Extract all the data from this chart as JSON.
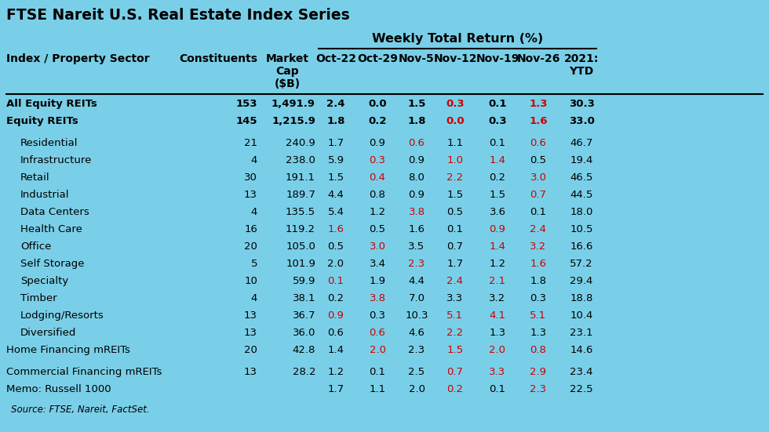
{
  "title": "FTSE Nareit U.S. Real Estate Index Series",
  "subtitle": "Weekly Total Return (%)",
  "bg_color": "#7acfe8",
  "rows": [
    {
      "sector": "All Equity REITs",
      "indent": false,
      "bold": true,
      "constituents": "153",
      "mktcap": "1,491.9",
      "vals": [
        "2.4",
        "0.0",
        "1.5",
        "0.3",
        "0.1",
        "1.3",
        "30.3"
      ],
      "red": [
        false,
        false,
        false,
        true,
        false,
        true,
        false
      ]
    },
    {
      "sector": "Equity REITs",
      "indent": false,
      "bold": true,
      "constituents": "145",
      "mktcap": "1,215.9",
      "vals": [
        "1.8",
        "0.2",
        "1.8",
        "0.0",
        "0.3",
        "1.6",
        "33.0"
      ],
      "red": [
        false,
        false,
        false,
        true,
        false,
        true,
        false
      ]
    },
    {
      "sector": "Residential",
      "indent": true,
      "bold": false,
      "constituents": "21",
      "mktcap": "240.9",
      "vals": [
        "1.7",
        "0.9",
        "0.6",
        "1.1",
        "0.1",
        "0.6",
        "46.7"
      ],
      "red": [
        false,
        false,
        true,
        false,
        false,
        true,
        false
      ]
    },
    {
      "sector": "Infrastructure",
      "indent": true,
      "bold": false,
      "constituents": "4",
      "mktcap": "238.0",
      "vals": [
        "5.9",
        "0.3",
        "0.9",
        "1.0",
        "1.4",
        "0.5",
        "19.4"
      ],
      "red": [
        false,
        true,
        false,
        true,
        true,
        false,
        false
      ]
    },
    {
      "sector": "Retail",
      "indent": true,
      "bold": false,
      "constituents": "30",
      "mktcap": "191.1",
      "vals": [
        "1.5",
        "0.4",
        "8.0",
        "2.2",
        "0.2",
        "3.0",
        "46.5"
      ],
      "red": [
        false,
        true,
        false,
        true,
        false,
        true,
        false
      ]
    },
    {
      "sector": "Industrial",
      "indent": true,
      "bold": false,
      "constituents": "13",
      "mktcap": "189.7",
      "vals": [
        "4.4",
        "0.8",
        "0.9",
        "1.5",
        "1.5",
        "0.7",
        "44.5"
      ],
      "red": [
        false,
        false,
        false,
        false,
        false,
        true,
        false
      ]
    },
    {
      "sector": "Data Centers",
      "indent": true,
      "bold": false,
      "constituents": "4",
      "mktcap": "135.5",
      "vals": [
        "5.4",
        "1.2",
        "3.8",
        "0.5",
        "3.6",
        "0.1",
        "18.0"
      ],
      "red": [
        false,
        false,
        true,
        false,
        false,
        false,
        false
      ]
    },
    {
      "sector": "Health Care",
      "indent": true,
      "bold": false,
      "constituents": "16",
      "mktcap": "119.2",
      "vals": [
        "1.6",
        "0.5",
        "1.6",
        "0.1",
        "0.9",
        "2.4",
        "10.5"
      ],
      "red": [
        true,
        false,
        false,
        false,
        true,
        true,
        false
      ]
    },
    {
      "sector": "Office",
      "indent": true,
      "bold": false,
      "constituents": "20",
      "mktcap": "105.0",
      "vals": [
        "0.5",
        "3.0",
        "3.5",
        "0.7",
        "1.4",
        "3.2",
        "16.6"
      ],
      "red": [
        false,
        true,
        false,
        false,
        true,
        true,
        false
      ]
    },
    {
      "sector": "Self Storage",
      "indent": true,
      "bold": false,
      "constituents": "5",
      "mktcap": "101.9",
      "vals": [
        "2.0",
        "3.4",
        "2.3",
        "1.7",
        "1.2",
        "1.6",
        "57.2"
      ],
      "red": [
        false,
        false,
        true,
        false,
        false,
        true,
        false
      ]
    },
    {
      "sector": "Specialty",
      "indent": true,
      "bold": false,
      "constituents": "10",
      "mktcap": "59.9",
      "vals": [
        "0.1",
        "1.9",
        "4.4",
        "2.4",
        "2.1",
        "1.8",
        "29.4"
      ],
      "red": [
        true,
        false,
        false,
        true,
        true,
        false,
        false
      ]
    },
    {
      "sector": "Timber",
      "indent": true,
      "bold": false,
      "constituents": "4",
      "mktcap": "38.1",
      "vals": [
        "0.2",
        "3.8",
        "7.0",
        "3.3",
        "3.2",
        "0.3",
        "18.8"
      ],
      "red": [
        false,
        true,
        false,
        false,
        false,
        false,
        false
      ]
    },
    {
      "sector": "Lodging/Resorts",
      "indent": true,
      "bold": false,
      "constituents": "13",
      "mktcap": "36.7",
      "vals": [
        "0.9",
        "0.3",
        "10.3",
        "5.1",
        "4.1",
        "5.1",
        "10.4"
      ],
      "red": [
        true,
        false,
        false,
        true,
        true,
        true,
        false
      ]
    },
    {
      "sector": "Diversified",
      "indent": true,
      "bold": false,
      "constituents": "13",
      "mktcap": "36.0",
      "vals": [
        "0.6",
        "0.6",
        "4.6",
        "2.2",
        "1.3",
        "1.3",
        "23.1"
      ],
      "red": [
        false,
        true,
        false,
        true,
        false,
        false,
        false
      ]
    },
    {
      "sector": "Home Financing mREITs",
      "indent": false,
      "bold": false,
      "constituents": "20",
      "mktcap": "42.8",
      "vals": [
        "1.4",
        "2.0",
        "2.3",
        "1.5",
        "2.0",
        "0.8",
        "14.6"
      ],
      "red": [
        false,
        true,
        false,
        true,
        true,
        true,
        false
      ]
    },
    {
      "sector": "Commercial Financing mREITs",
      "indent": false,
      "bold": false,
      "constituents": "13",
      "mktcap": "28.2",
      "vals": [
        "1.2",
        "0.1",
        "2.5",
        "0.7",
        "3.3",
        "2.9",
        "23.4"
      ],
      "red": [
        false,
        false,
        false,
        true,
        true,
        true,
        false
      ]
    },
    {
      "sector": "Memo: Russell 1000",
      "indent": false,
      "bold": false,
      "constituents": "",
      "mktcap": "",
      "vals": [
        "1.7",
        "1.1",
        "2.0",
        "0.2",
        "0.1",
        "2.3",
        "22.5"
      ],
      "red": [
        false,
        false,
        false,
        true,
        false,
        true,
        false
      ]
    }
  ],
  "source_text": "Source: FTSE, Nareit, FactSet.",
  "text_color": "#000000",
  "red_color": "#cc0000",
  "fig_w": 9.8,
  "fig_h": 5.51,
  "dpi": 100
}
